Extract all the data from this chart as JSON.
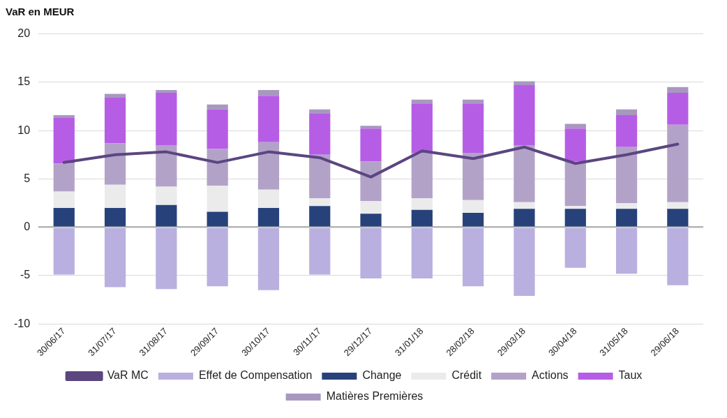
{
  "chart_data": {
    "type": "bar",
    "stacked": true,
    "ylabel": "VaR en MEUR",
    "categories": [
      "30/06/17",
      "31/07/17",
      "31/08/17",
      "29/09/17",
      "30/10/17",
      "30/11/17",
      "29/12/17",
      "31/01/18",
      "28/02/18",
      "29/03/18",
      "30/04/18",
      "31/05/18",
      "29/06/18"
    ],
    "series": [
      {
        "name": "Effet de Compensation",
        "color": "#b9b0e0",
        "values": [
          -4.9,
          -6.2,
          -6.4,
          -6.1,
          -6.5,
          -4.9,
          -5.3,
          -5.3,
          -6.1,
          -7.1,
          -4.2,
          -4.8,
          -6.0
        ]
      },
      {
        "name": "Change",
        "color": "#27427a",
        "values": [
          2.0,
          2.0,
          2.3,
          1.6,
          2.0,
          2.2,
          1.4,
          1.8,
          1.5,
          1.9,
          1.9,
          1.9,
          1.9
        ]
      },
      {
        "name": "Crédit",
        "color": "#ebebeb",
        "values": [
          1.7,
          2.4,
          1.9,
          2.7,
          1.9,
          0.8,
          1.3,
          1.2,
          1.3,
          0.7,
          0.3,
          0.6,
          0.7
        ]
      },
      {
        "name": "Actions",
        "color": "#b3a2c8",
        "values": [
          2.9,
          4.3,
          4.3,
          3.8,
          4.9,
          4.5,
          4.1,
          4.7,
          4.9,
          5.9,
          4.6,
          5.8,
          8.0
        ]
      },
      {
        "name": "Taux",
        "color": "#b65de6",
        "values": [
          4.7,
          4.7,
          5.4,
          4.1,
          4.8,
          4.3,
          3.4,
          5.1,
          5.1,
          6.2,
          3.4,
          3.3,
          3.3
        ]
      },
      {
        "name": "Matières Premières",
        "color": "#a898c0",
        "values": [
          0.3,
          0.4,
          0.3,
          0.5,
          0.6,
          0.4,
          0.3,
          0.4,
          0.4,
          0.4,
          0.5,
          0.6,
          0.6
        ]
      },
      {
        "name": "VaR MC",
        "type": "line",
        "color": "#5b4680",
        "values": [
          6.7,
          7.5,
          7.8,
          6.7,
          7.8,
          7.2,
          5.2,
          7.9,
          7.1,
          8.3,
          6.6,
          7.5,
          8.6
        ]
      }
    ],
    "ylim": [
      -10,
      20
    ],
    "yticks": [
      -10,
      -5,
      0,
      5,
      10,
      15,
      20
    ],
    "grid": "y",
    "legend": "bottom",
    "marker": "none"
  }
}
